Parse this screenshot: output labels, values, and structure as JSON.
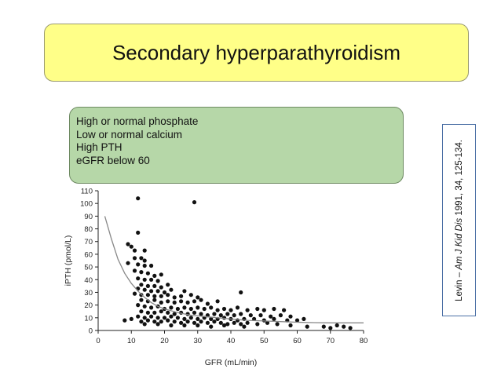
{
  "title": "Secondary hyperparathyroidism",
  "info_lines": [
    "High or normal phosphate",
    "Low or normal calcium",
    "High PTH",
    "eGFR below 60"
  ],
  "citation": {
    "prefix": "Levin – ",
    "journal": "Am J Kid Dis",
    "rest": " 1991, 34, 125-134."
  },
  "colors": {
    "title_bg": "#ffff88",
    "info_bg": "#b6d7a8",
    "cite_border": "#4a6fa5",
    "points": "#111111",
    "fit": "#888888"
  },
  "chart_data": {
    "type": "scatter",
    "xlabel": "GFR (mL/min)",
    "ylabel": "iPTH (pmol/L)",
    "xlim": [
      0,
      80
    ],
    "ylim": [
      0,
      110
    ],
    "xticks": [
      0,
      10,
      20,
      30,
      40,
      50,
      60,
      70,
      80
    ],
    "yticks": [
      0,
      10,
      20,
      30,
      40,
      50,
      60,
      70,
      80,
      90,
      100,
      110
    ],
    "points": [
      [
        12,
        104
      ],
      [
        29,
        101
      ],
      [
        12,
        77
      ],
      [
        9,
        68
      ],
      [
        10,
        66
      ],
      [
        11,
        63
      ],
      [
        14,
        63
      ],
      [
        11,
        57
      ],
      [
        13,
        57
      ],
      [
        14,
        55
      ],
      [
        9,
        53
      ],
      [
        12,
        52
      ],
      [
        14,
        51
      ],
      [
        16,
        51
      ],
      [
        11,
        47
      ],
      [
        13,
        46
      ],
      [
        15,
        45
      ],
      [
        19,
        44
      ],
      [
        17,
        43
      ],
      [
        12,
        41
      ],
      [
        14,
        40
      ],
      [
        16,
        40
      ],
      [
        18,
        39
      ],
      [
        13,
        36
      ],
      [
        15,
        35
      ],
      [
        17,
        35
      ],
      [
        19,
        34
      ],
      [
        21,
        36
      ],
      [
        12,
        33
      ],
      [
        14,
        32
      ],
      [
        16,
        31
      ],
      [
        18,
        31
      ],
      [
        20,
        30
      ],
      [
        22,
        32
      ],
      [
        26,
        31
      ],
      [
        11,
        29
      ],
      [
        13,
        28
      ],
      [
        15,
        28
      ],
      [
        17,
        27
      ],
      [
        19,
        27
      ],
      [
        21,
        28
      ],
      [
        23,
        26
      ],
      [
        25,
        27
      ],
      [
        28,
        28
      ],
      [
        30,
        26
      ],
      [
        13,
        24
      ],
      [
        15,
        23
      ],
      [
        17,
        24
      ],
      [
        19,
        22
      ],
      [
        21,
        23
      ],
      [
        23,
        22
      ],
      [
        25,
        23
      ],
      [
        27,
        22
      ],
      [
        29,
        23
      ],
      [
        31,
        24
      ],
      [
        33,
        21
      ],
      [
        36,
        23
      ],
      [
        43,
        30
      ],
      [
        12,
        20
      ],
      [
        14,
        19
      ],
      [
        16,
        18
      ],
      [
        18,
        19
      ],
      [
        20,
        17
      ],
      [
        22,
        18
      ],
      [
        24,
        17
      ],
      [
        26,
        18
      ],
      [
        28,
        17
      ],
      [
        30,
        18
      ],
      [
        32,
        17
      ],
      [
        34,
        18
      ],
      [
        36,
        16
      ],
      [
        38,
        17
      ],
      [
        40,
        16
      ],
      [
        42,
        18
      ],
      [
        45,
        16
      ],
      [
        48,
        17
      ],
      [
        50,
        16
      ],
      [
        53,
        17
      ],
      [
        56,
        16
      ],
      [
        13,
        15
      ],
      [
        15,
        14
      ],
      [
        17,
        14
      ],
      [
        19,
        15
      ],
      [
        21,
        14
      ],
      [
        23,
        13
      ],
      [
        25,
        14
      ],
      [
        27,
        13
      ],
      [
        29,
        14
      ],
      [
        31,
        13
      ],
      [
        33,
        12
      ],
      [
        35,
        13
      ],
      [
        37,
        12
      ],
      [
        39,
        13
      ],
      [
        41,
        12
      ],
      [
        43,
        13
      ],
      [
        46,
        12
      ],
      [
        49,
        12
      ],
      [
        52,
        11
      ],
      [
        55,
        12
      ],
      [
        58,
        11
      ],
      [
        12,
        11
      ],
      [
        14,
        10
      ],
      [
        16,
        11
      ],
      [
        18,
        10
      ],
      [
        20,
        10
      ],
      [
        22,
        11
      ],
      [
        24,
        10
      ],
      [
        26,
        9
      ],
      [
        28,
        10
      ],
      [
        30,
        9
      ],
      [
        32,
        10
      ],
      [
        34,
        9
      ],
      [
        36,
        9
      ],
      [
        38,
        10
      ],
      [
        40,
        9
      ],
      [
        42,
        8
      ],
      [
        44,
        9
      ],
      [
        47,
        9
      ],
      [
        50,
        8
      ],
      [
        53,
        9
      ],
      [
        57,
        8
      ],
      [
        60,
        8
      ],
      [
        62,
        9
      ],
      [
        13,
        7
      ],
      [
        15,
        8
      ],
      [
        17,
        7
      ],
      [
        19,
        7
      ],
      [
        21,
        8
      ],
      [
        23,
        7
      ],
      [
        25,
        6
      ],
      [
        27,
        7
      ],
      [
        29,
        6
      ],
      [
        31,
        7
      ],
      [
        33,
        6
      ],
      [
        35,
        7
      ],
      [
        37,
        6
      ],
      [
        39,
        5
      ],
      [
        41,
        6
      ],
      [
        43,
        5
      ],
      [
        45,
        6
      ],
      [
        48,
        5
      ],
      [
        51,
        6
      ],
      [
        54,
        5
      ],
      [
        8,
        8
      ],
      [
        10,
        9
      ],
      [
        14,
        5
      ],
      [
        18,
        5
      ],
      [
        22,
        4
      ],
      [
        26,
        4
      ],
      [
        30,
        4
      ],
      [
        34,
        3
      ],
      [
        38,
        4
      ],
      [
        44,
        3
      ],
      [
        58,
        4
      ],
      [
        63,
        3
      ],
      [
        68,
        3
      ],
      [
        70,
        2
      ],
      [
        72,
        4
      ],
      [
        74,
        3
      ],
      [
        76,
        2
      ]
    ],
    "fit_curve": [
      [
        2,
        90
      ],
      [
        4,
        72
      ],
      [
        6,
        56
      ],
      [
        8,
        45
      ],
      [
        10,
        37
      ],
      [
        12,
        31
      ],
      [
        14,
        26
      ],
      [
        16,
        22
      ],
      [
        18,
        19
      ],
      [
        20,
        17
      ],
      [
        24,
        14
      ],
      [
        28,
        12
      ],
      [
        32,
        11
      ],
      [
        36,
        10
      ],
      [
        40,
        9
      ],
      [
        45,
        8
      ],
      [
        50,
        7.5
      ],
      [
        55,
        7
      ],
      [
        60,
        6.5
      ],
      [
        65,
        6.2
      ],
      [
        70,
        6
      ],
      [
        75,
        6
      ],
      [
        80,
        6
      ]
    ]
  }
}
